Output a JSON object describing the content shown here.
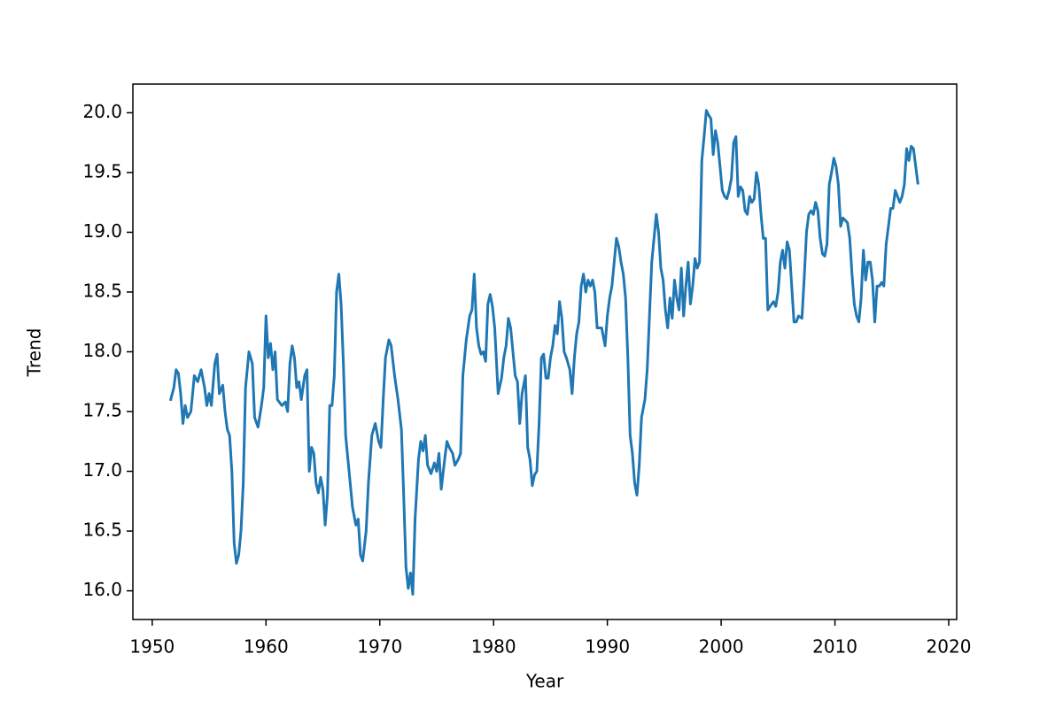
{
  "chart_data": {
    "type": "line",
    "xlabel": "Year",
    "ylabel": "Trend",
    "x": [
      1951.6,
      1951.9,
      1952.1,
      1952.3,
      1952.5,
      1952.7,
      1952.9,
      1953.1,
      1953.4,
      1953.7,
      1954.0,
      1954.3,
      1954.6,
      1954.8,
      1955.0,
      1955.2,
      1955.5,
      1955.7,
      1955.9,
      1956.2,
      1956.4,
      1956.6,
      1956.8,
      1957.0,
      1957.2,
      1957.4,
      1957.6,
      1957.8,
      1958.0,
      1958.2,
      1958.5,
      1958.8,
      1959.0,
      1959.3,
      1959.6,
      1959.8,
      1960.0,
      1960.2,
      1960.4,
      1960.6,
      1960.8,
      1961.0,
      1961.4,
      1961.7,
      1961.9,
      1962.1,
      1962.3,
      1962.5,
      1962.7,
      1962.9,
      1963.1,
      1963.4,
      1963.6,
      1963.8,
      1964.0,
      1964.2,
      1964.4,
      1964.6,
      1964.8,
      1965.0,
      1965.2,
      1965.4,
      1965.6,
      1965.8,
      1966.0,
      1966.2,
      1966.4,
      1966.6,
      1966.8,
      1967.0,
      1967.3,
      1967.6,
      1967.9,
      1968.1,
      1968.3,
      1968.5,
      1968.8,
      1969.0,
      1969.3,
      1969.6,
      1969.9,
      1970.1,
      1970.3,
      1970.5,
      1970.8,
      1971.0,
      1971.3,
      1971.6,
      1971.9,
      1972.1,
      1972.3,
      1972.5,
      1972.7,
      1972.9,
      1973.1,
      1973.4,
      1973.6,
      1973.8,
      1974.0,
      1974.2,
      1974.5,
      1974.8,
      1975.0,
      1975.2,
      1975.4,
      1975.7,
      1975.9,
      1976.1,
      1976.4,
      1976.6,
      1976.9,
      1977.1,
      1977.3,
      1977.6,
      1977.9,
      1978.1,
      1978.3,
      1978.5,
      1978.7,
      1978.9,
      1979.1,
      1979.3,
      1979.5,
      1979.7,
      1979.9,
      1980.1,
      1980.4,
      1980.7,
      1980.9,
      1981.1,
      1981.3,
      1981.5,
      1981.7,
      1981.9,
      1982.1,
      1982.3,
      1982.5,
      1982.8,
      1983.0,
      1983.2,
      1983.4,
      1983.6,
      1983.8,
      1984.0,
      1984.2,
      1984.4,
      1984.6,
      1984.8,
      1985.0,
      1985.2,
      1985.4,
      1985.6,
      1985.8,
      1986.0,
      1986.2,
      1986.4,
      1986.7,
      1986.9,
      1987.1,
      1987.3,
      1987.5,
      1987.7,
      1987.9,
      1988.1,
      1988.3,
      1988.5,
      1988.7,
      1988.9,
      1989.1,
      1989.3,
      1989.5,
      1989.8,
      1990.0,
      1990.2,
      1990.4,
      1990.6,
      1990.8,
      1991.0,
      1991.2,
      1991.4,
      1991.6,
      1991.8,
      1992.0,
      1992.2,
      1992.4,
      1992.6,
      1992.8,
      1993.0,
      1993.3,
      1993.5,
      1993.7,
      1993.9,
      1994.1,
      1994.3,
      1994.5,
      1994.7,
      1994.9,
      1995.1,
      1995.3,
      1995.5,
      1995.7,
      1995.9,
      1996.1,
      1996.3,
      1996.5,
      1996.7,
      1996.9,
      1997.1,
      1997.3,
      1997.5,
      1997.7,
      1997.9,
      1998.1,
      1998.3,
      1998.5,
      1998.7,
      1998.9,
      1999.1,
      1999.3,
      1999.5,
      1999.7,
      1999.9,
      2000.1,
      2000.3,
      2000.5,
      2000.7,
      2000.9,
      2001.1,
      2001.3,
      2001.5,
      2001.7,
      2001.9,
      2002.1,
      2002.3,
      2002.5,
      2002.7,
      2002.9,
      2003.1,
      2003.3,
      2003.5,
      2003.7,
      2003.9,
      2004.1,
      2004.3,
      2004.6,
      2004.8,
      2005.0,
      2005.2,
      2005.4,
      2005.6,
      2005.8,
      2006.0,
      2006.2,
      2006.4,
      2006.6,
      2006.8,
      2007.1,
      2007.3,
      2007.5,
      2007.7,
      2007.9,
      2008.1,
      2008.3,
      2008.5,
      2008.7,
      2008.9,
      2009.1,
      2009.3,
      2009.5,
      2009.7,
      2009.9,
      2010.1,
      2010.3,
      2010.5,
      2010.7,
      2010.9,
      2011.1,
      2011.3,
      2011.5,
      2011.7,
      2011.9,
      2012.1,
      2012.3,
      2012.5,
      2012.7,
      2012.9,
      2013.1,
      2013.3,
      2013.5,
      2013.7,
      2013.9,
      2014.1,
      2014.3,
      2014.5,
      2014.7,
      2014.9,
      2015.1,
      2015.3,
      2015.5,
      2015.7,
      2015.9,
      2016.1,
      2016.3,
      2016.5,
      2016.7,
      2016.9,
      2017.1,
      2017.3
    ],
    "series": [
      {
        "color": "#1f77b4",
        "values": [
          17.59,
          17.7,
          17.85,
          17.82,
          17.65,
          17.4,
          17.55,
          17.45,
          17.5,
          17.8,
          17.75,
          17.85,
          17.7,
          17.55,
          17.65,
          17.55,
          17.9,
          17.98,
          17.65,
          17.72,
          17.5,
          17.35,
          17.3,
          17.0,
          16.4,
          16.23,
          16.3,
          16.5,
          16.9,
          17.7,
          18.0,
          17.9,
          17.45,
          17.37,
          17.55,
          17.7,
          18.3,
          17.95,
          18.07,
          17.85,
          18.0,
          17.6,
          17.55,
          17.58,
          17.5,
          17.9,
          18.05,
          17.95,
          17.7,
          17.75,
          17.6,
          17.8,
          17.85,
          17.0,
          17.2,
          17.15,
          16.9,
          16.82,
          16.95,
          16.85,
          16.55,
          16.8,
          17.55,
          17.55,
          17.8,
          18.5,
          18.65,
          18.4,
          17.9,
          17.3,
          17.0,
          16.7,
          16.55,
          16.6,
          16.3,
          16.25,
          16.5,
          16.9,
          17.3,
          17.4,
          17.25,
          17.2,
          17.6,
          17.95,
          18.1,
          18.05,
          17.8,
          17.6,
          17.35,
          16.8,
          16.2,
          16.02,
          16.15,
          15.97,
          16.6,
          17.1,
          17.25,
          17.17,
          17.3,
          17.05,
          16.98,
          17.07,
          17.0,
          17.15,
          16.85,
          17.1,
          17.25,
          17.2,
          17.15,
          17.05,
          17.1,
          17.15,
          17.8,
          18.1,
          18.3,
          18.35,
          18.65,
          18.2,
          18.05,
          17.98,
          18.0,
          17.92,
          18.4,
          18.48,
          18.38,
          18.2,
          17.65,
          17.78,
          17.95,
          18.05,
          18.28,
          18.2,
          18.0,
          17.8,
          17.75,
          17.4,
          17.65,
          17.8,
          17.2,
          17.1,
          16.88,
          16.97,
          17.0,
          17.4,
          17.95,
          17.98,
          17.78,
          17.78,
          17.95,
          18.05,
          18.22,
          18.15,
          18.42,
          18.28,
          18.0,
          17.95,
          17.85,
          17.65,
          17.95,
          18.15,
          18.25,
          18.55,
          18.65,
          18.5,
          18.6,
          18.55,
          18.6,
          18.5,
          18.2,
          18.2,
          18.2,
          18.05,
          18.3,
          18.45,
          18.55,
          18.75,
          18.95,
          18.88,
          18.75,
          18.65,
          18.45,
          17.95,
          17.3,
          17.15,
          16.9,
          16.8,
          17.05,
          17.45,
          17.6,
          17.85,
          18.3,
          18.75,
          18.95,
          19.15,
          19.0,
          18.7,
          18.6,
          18.35,
          18.2,
          18.45,
          18.28,
          18.6,
          18.45,
          18.35,
          18.7,
          18.3,
          18.55,
          18.75,
          18.4,
          18.55,
          18.78,
          18.7,
          18.75,
          19.6,
          19.8,
          20.02,
          19.98,
          19.95,
          19.65,
          19.85,
          19.75,
          19.55,
          19.35,
          19.3,
          19.28,
          19.35,
          19.45,
          19.75,
          19.8,
          19.3,
          19.38,
          19.35,
          19.18,
          19.15,
          19.3,
          19.25,
          19.28,
          19.5,
          19.4,
          19.15,
          18.95,
          18.95,
          18.35,
          18.38,
          18.42,
          18.38,
          18.5,
          18.75,
          18.85,
          18.7,
          18.92,
          18.85,
          18.55,
          18.25,
          18.25,
          18.3,
          18.28,
          18.62,
          19.0,
          19.15,
          19.18,
          19.15,
          19.25,
          19.18,
          18.95,
          18.82,
          18.8,
          18.9,
          19.4,
          19.5,
          19.62,
          19.55,
          19.4,
          19.05,
          19.12,
          19.1,
          19.08,
          18.95,
          18.65,
          18.4,
          18.3,
          18.25,
          18.45,
          18.85,
          18.6,
          18.75,
          18.75,
          18.6,
          18.25,
          18.55,
          18.55,
          18.58,
          18.55,
          18.9,
          19.05,
          19.2,
          19.2,
          19.35,
          19.3,
          19.25,
          19.3,
          19.4,
          19.7,
          19.6,
          19.72,
          19.7,
          19.55,
          19.4
        ]
      }
    ],
    "xlim": [
      1948.3,
      2020.7
    ],
    "ylim": [
      15.76,
      20.24
    ],
    "xticks": [
      1950,
      1960,
      1970,
      1980,
      1990,
      2000,
      2010,
      2020
    ],
    "yticks": [
      {
        "value": 16,
        "label": "16.0"
      },
      16.5,
      {
        "value": 17,
        "label": "17.0"
      },
      17.5,
      {
        "value": 18,
        "label": "18.0"
      },
      18.5,
      {
        "value": 19,
        "label": "19.0"
      },
      19.5,
      {
        "value": 20,
        "label": "20.0"
      }
    ]
  }
}
